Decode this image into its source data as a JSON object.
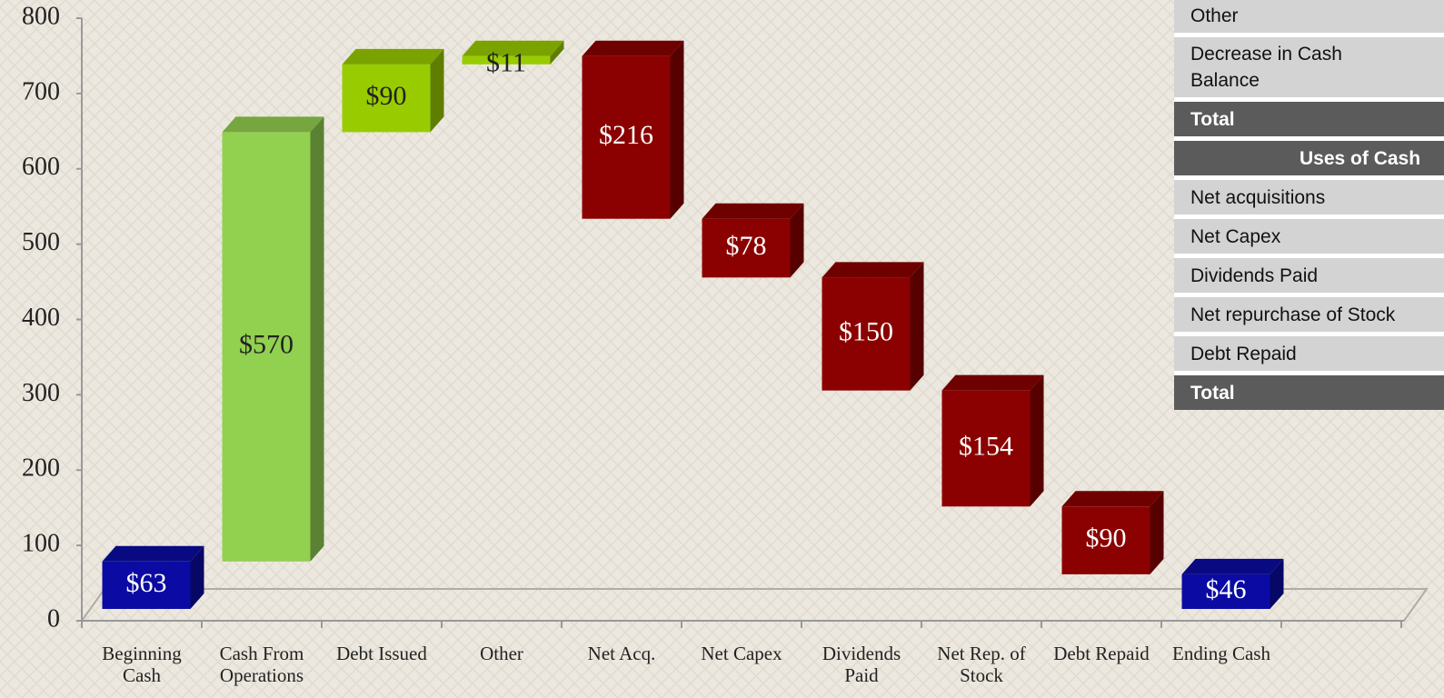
{
  "chart_data": {
    "type": "waterfall",
    "categories": [
      "Beginning Cash",
      "Cash From Operations",
      "Debt Issued",
      "Other",
      "Net Acq.",
      "Net Capex",
      "Dividends Paid",
      "Net Rep. of Stock",
      "Debt Repaid",
      "Ending Cash"
    ],
    "values": [
      63,
      570,
      90,
      11,
      216,
      78,
      150,
      154,
      90,
      46
    ],
    "value_labels": [
      "$63",
      "$570",
      "$90",
      "$11",
      "$216",
      "$78",
      "$150",
      "$154",
      "$90",
      "$46"
    ],
    "measure": [
      "total",
      "increase",
      "increase",
      "increase",
      "decrease",
      "decrease",
      "decrease",
      "decrease",
      "decrease",
      "total"
    ],
    "colors": [
      "#0b0ba3",
      "#92d050",
      "#99cc00",
      "#99cc00",
      "#8b0000",
      "#8b0000",
      "#8b0000",
      "#8b0000",
      "#8b0000",
      "#0b0ba3"
    ],
    "ylim": [
      0,
      800
    ],
    "yticks": [
      0,
      100,
      200,
      300,
      400,
      500,
      600,
      700,
      800
    ]
  },
  "table": {
    "rows": [
      {
        "label": "Other",
        "kind": "row"
      },
      {
        "label": "Decrease in Cash Balance",
        "kind": "row"
      },
      {
        "label": "Total",
        "kind": "total"
      },
      {
        "label": "Uses of Cash",
        "kind": "header"
      },
      {
        "label": "Net acquisitions",
        "kind": "row"
      },
      {
        "label": "Net Capex",
        "kind": "row"
      },
      {
        "label": "Dividends Paid",
        "kind": "row"
      },
      {
        "label": "Net repurchase of Stock",
        "kind": "row"
      },
      {
        "label": "Debt Repaid",
        "kind": "row"
      },
      {
        "label": "Total",
        "kind": "total"
      }
    ]
  }
}
